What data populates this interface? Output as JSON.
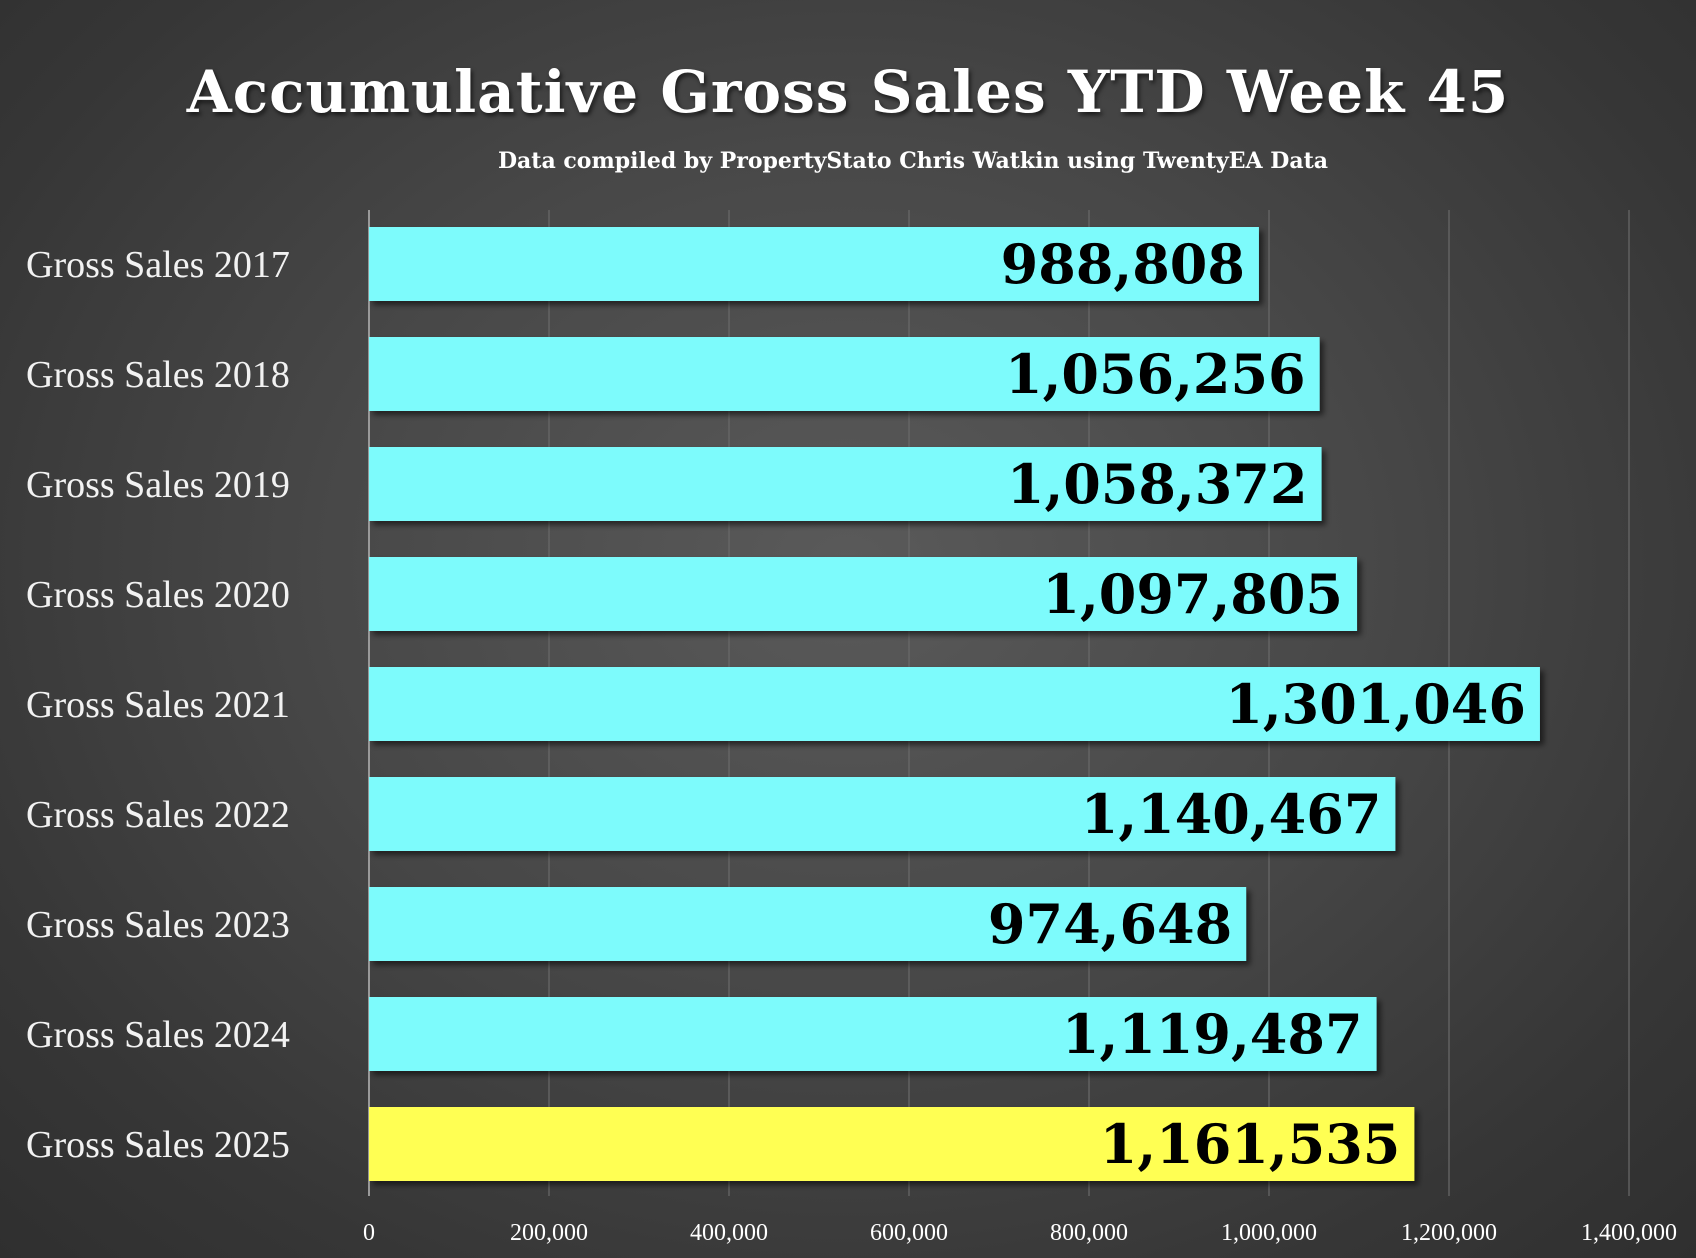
{
  "chart_data": {
    "type": "bar",
    "orientation": "horizontal",
    "title": "Accumulative Gross Sales YTD Week 45",
    "subtitle": "Data compiled by PropertyStato Chris Watkin using TwentyEA Data",
    "categories": [
      "Gross Sales 2017",
      "Gross Sales 2018",
      "Gross Sales 2019",
      "Gross Sales 2020",
      "Gross Sales 2021",
      "Gross Sales 2022",
      "Gross Sales 2023",
      "Gross Sales 2024",
      "Gross Sales 2025"
    ],
    "values": [
      988808,
      1056256,
      1058372,
      1097805,
      1301046,
      1140467,
      974648,
      1119487,
      1161535
    ],
    "value_labels": [
      "988,808",
      "1,056,256",
      "1,058,372",
      "1,097,805",
      "1,301,046",
      "1,140,467",
      "974,648",
      "1,119,487",
      "1,161,535"
    ],
    "bar_colors": [
      "#7dfbfc",
      "#7dfbfc",
      "#7dfbfc",
      "#7dfbfc",
      "#7dfbfc",
      "#7dfbfc",
      "#7dfbfc",
      "#7dfbfc",
      "#ffff52"
    ],
    "xlim": [
      0,
      1400000
    ],
    "xticks": [
      0,
      200000,
      400000,
      600000,
      800000,
      1000000,
      1200000,
      1400000
    ],
    "xtick_labels": [
      "0",
      "200,000",
      "400,000",
      "600,000",
      "800,000",
      "1,000,000",
      "1,200,000",
      "1,400,000"
    ],
    "grid": true,
    "legend": "none",
    "background": "#474747",
    "text_color": "#ffffff"
  }
}
